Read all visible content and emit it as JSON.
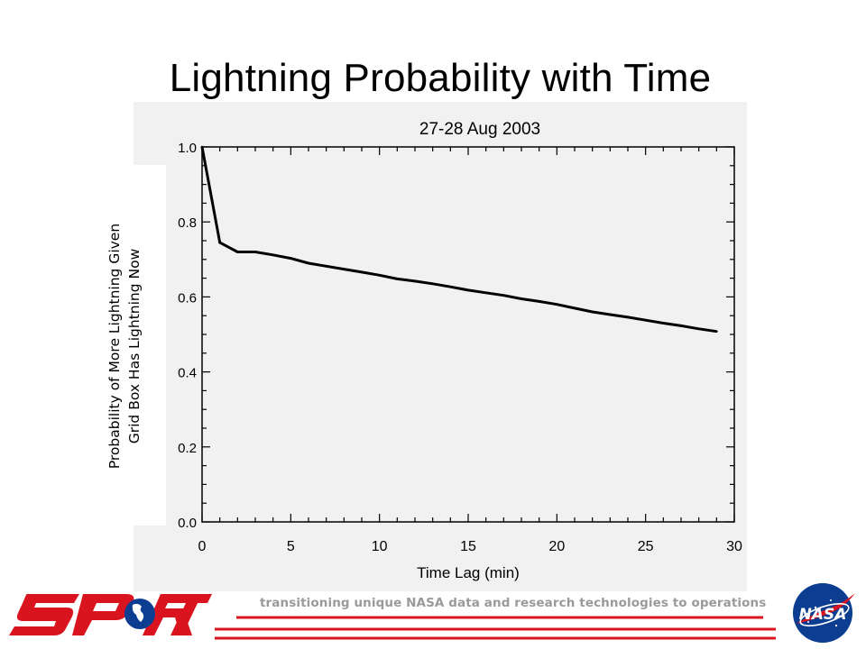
{
  "slide": {
    "title": "Lightning Probability with Time",
    "tagline": "transitioning unique NASA data and research technologies to operations",
    "logo_left_text": "SPoRT",
    "logo_right_text": "NASA"
  },
  "colors": {
    "accent_red": "#d9141e",
    "nasa_blue": "#0b3d91",
    "tagline_gray": "#9a9a9a",
    "chart_panel": "#f1f1f1"
  },
  "chart_data": {
    "type": "line",
    "title": "27-28 Aug 2003",
    "xlabel": "Time Lag (min)",
    "ylabel": "Probability of More Lightning Given\nGrid Box Has Lightning Now",
    "xlim": [
      0,
      30
    ],
    "ylim": [
      0.0,
      1.0
    ],
    "x_ticks": [
      "0",
      "5",
      "10",
      "15",
      "20",
      "25",
      "30"
    ],
    "y_ticks": [
      "0.0",
      "0.2",
      "0.4",
      "0.6",
      "0.8",
      "1.0"
    ],
    "grid": false,
    "series": [
      {
        "x": [
          0,
          1,
          2,
          3,
          4,
          5,
          6,
          7,
          8,
          9,
          10,
          11,
          12,
          13,
          14,
          15,
          16,
          17,
          18,
          19,
          20,
          21,
          22,
          23,
          24,
          25,
          26,
          27,
          28,
          29
        ],
        "y": [
          1.0,
          0.745,
          0.72,
          0.72,
          0.712,
          0.703,
          0.69,
          0.682,
          0.674,
          0.666,
          0.658,
          0.648,
          0.642,
          0.635,
          0.627,
          0.618,
          0.611,
          0.604,
          0.595,
          0.588,
          0.58,
          0.57,
          0.56,
          0.553,
          0.546,
          0.538,
          0.53,
          0.523,
          0.515,
          0.508
        ]
      }
    ]
  }
}
